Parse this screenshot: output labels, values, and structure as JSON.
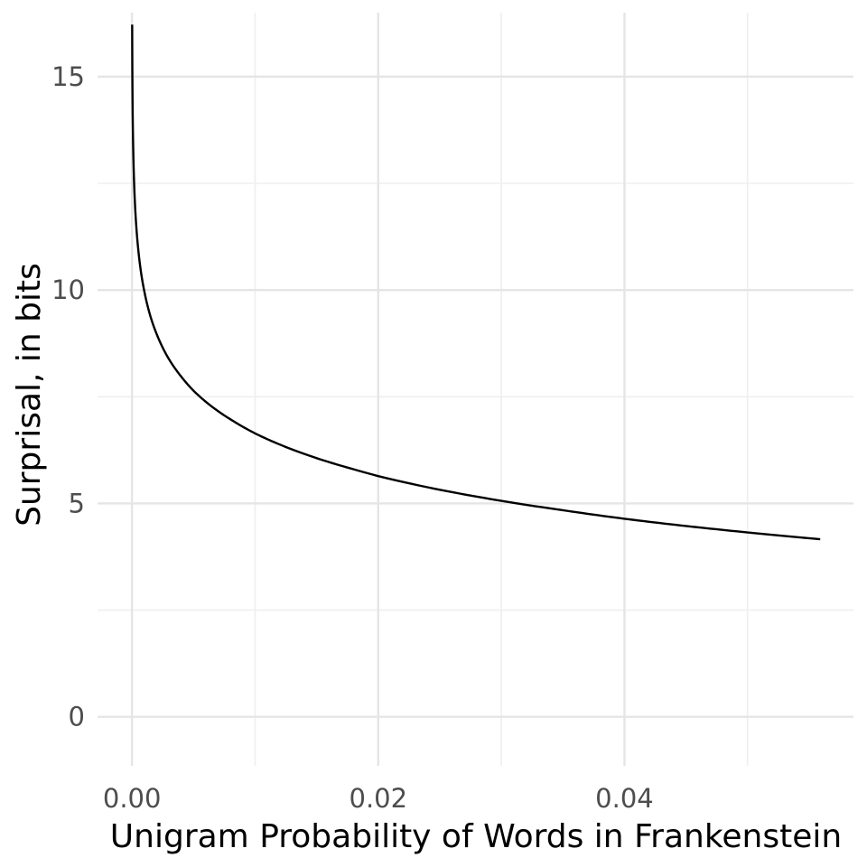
{
  "chart_data": {
    "type": "line",
    "title": "",
    "xlabel": "Unigram Probability of Words in Frankenstein",
    "ylabel": "Surprisal, in bits",
    "xlim": [
      -0.0028,
      0.0586
    ],
    "ylim": [
      -1.15,
      16.5
    ],
    "x_ticks": [
      0,
      0.02,
      0.04
    ],
    "x_tick_labels": [
      "0.00",
      "0.02",
      "0.04"
    ],
    "x_minor_ticks": [
      0.01,
      0.03,
      0.05
    ],
    "y_ticks": [
      0,
      5,
      10,
      15
    ],
    "y_tick_labels": [
      "0",
      "5",
      "10",
      "15"
    ],
    "y_minor_ticks": [
      2.5,
      7.5,
      12.5
    ],
    "grid": true,
    "legend": "none",
    "series": [
      {
        "color": "#000000",
        "x": [
          1.31e-05,
          3e-05,
          7e-05,
          0.00015,
          0.0003,
          0.0005,
          0.00075,
          0.001,
          0.0015,
          0.002,
          0.003,
          0.004,
          0.005,
          0.006,
          0.008,
          0.01,
          0.012,
          0.015,
          0.018,
          0.02,
          0.025,
          0.03,
          0.035,
          0.04,
          0.045,
          0.05,
          0.0559
        ],
        "y": [
          16.22,
          15.02,
          13.8,
          12.7,
          11.7,
          10.97,
          10.38,
          9.97,
          9.38,
          8.97,
          8.38,
          7.97,
          7.64,
          7.38,
          6.97,
          6.64,
          6.38,
          6.06,
          5.8,
          5.64,
          5.32,
          5.06,
          4.84,
          4.64,
          4.47,
          4.32,
          4.16
        ]
      }
    ]
  }
}
